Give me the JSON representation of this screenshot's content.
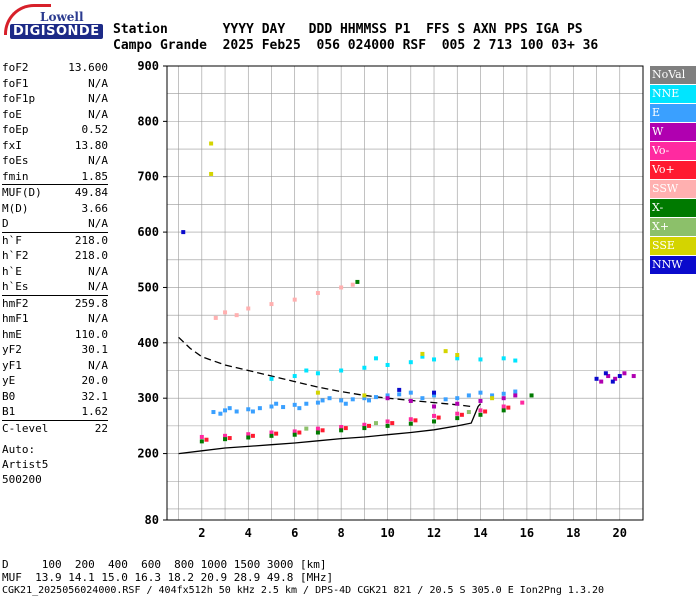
{
  "logo": {
    "top": "Lowell",
    "main": "DIGISONDE"
  },
  "header": {
    "row1": "Station       YYYY DAY   DDD HHMMSS P1  FFS S AXN PPS IGA PS",
    "row2": "Campo Grande  2025 Feb25  056 024000 RSF  005 2 713 100 03+ 36"
  },
  "params": [
    {
      "name": "foF2",
      "value": "13.600"
    },
    {
      "name": "foF1",
      "value": "N/A"
    },
    {
      "name": "foF1p",
      "value": "N/A"
    },
    {
      "name": "foE",
      "value": "N/A"
    },
    {
      "name": "foEp",
      "value": "0.52"
    },
    {
      "name": "fxI",
      "value": "13.80"
    },
    {
      "name": "foEs",
      "value": "N/A"
    },
    {
      "name": "fmin",
      "value": "1.85",
      "sep": false
    },
    {
      "name": "MUF(D)",
      "value": "49.84",
      "sep": true
    },
    {
      "name": "M(D)",
      "value": "3.66"
    },
    {
      "name": "D",
      "value": "N/A"
    },
    {
      "name": "h`F",
      "value": "218.0",
      "sep": true
    },
    {
      "name": "h`F2",
      "value": "218.0"
    },
    {
      "name": "h`E",
      "value": "N/A"
    },
    {
      "name": "h`Es",
      "value": "N/A"
    },
    {
      "name": "hmF2",
      "value": "259.8",
      "sep": true
    },
    {
      "name": "hmF1",
      "value": "N/A"
    },
    {
      "name": "hmE",
      "value": "110.0"
    },
    {
      "name": "yF2",
      "value": "30.1"
    },
    {
      "name": "yF1",
      "value": "N/A"
    },
    {
      "name": "yE",
      "value": "20.0"
    },
    {
      "name": "B0",
      "value": "32.1"
    },
    {
      "name": "B1",
      "value": "1.62"
    },
    {
      "name": "C-level",
      "value": "22",
      "sep": true
    }
  ],
  "auto": [
    "Auto:",
    "Artist5",
    "500200"
  ],
  "footer": {
    "d_row": "D     100  200  400  600  800 1000 1500 3000 [km]",
    "muf_row": "MUF  13.9 14.1 15.0 16.3 18.2 20.9 28.9 49.8 [MHz]",
    "file_row": "CGK21_2025056024000.RSF / 404fx512h 50 kHz 2.5 km / DPS-4D CGK21 821 / 20.5 S 305.0 E Ion2Png 1.3.20"
  },
  "legend": [
    {
      "label": "NoVal",
      "color": "#7f7f7f"
    },
    {
      "label": "NNE",
      "color": "#00e5ff"
    },
    {
      "label": "E",
      "color": "#3aa0ff"
    },
    {
      "label": "W",
      "color": "#b000b0"
    },
    {
      "label": "Vo-",
      "color": "#ff2aa0"
    },
    {
      "label": "Vo+",
      "color": "#ff1a30"
    },
    {
      "label": "SSW",
      "color": "#ffb0b0"
    },
    {
      "label": "X-",
      "color": "#007a00"
    },
    {
      "label": "X+",
      "color": "#8cc06a"
    },
    {
      "label": "SSE",
      "color": "#d4d400"
    },
    {
      "label": "NNW",
      "color": "#0a0acc"
    }
  ],
  "chart_data": {
    "type": "scatter",
    "title": "",
    "xlabel": "",
    "ylabel": "",
    "xlim": [
      0.5,
      21
    ],
    "ylim": [
      80,
      900
    ],
    "y_ticks": [
      80,
      200,
      300,
      400,
      500,
      600,
      700,
      800,
      900
    ],
    "x_ticks": [
      2,
      4,
      6,
      8,
      10,
      12,
      14,
      16,
      18,
      20
    ],
    "grid": true,
    "legend_position": "right",
    "series": [
      {
        "name": "E",
        "color": "#3aa0ff",
        "points": [
          [
            2.5,
            275
          ],
          [
            3,
            278
          ],
          [
            3.5,
            276
          ],
          [
            4,
            280
          ],
          [
            4.5,
            282
          ],
          [
            5,
            285
          ],
          [
            5.5,
            284
          ],
          [
            6,
            288
          ],
          [
            6.5,
            290
          ],
          [
            7,
            292
          ],
          [
            7.5,
            300
          ],
          [
            8,
            296
          ],
          [
            8.5,
            298
          ],
          [
            9,
            300
          ],
          [
            9.5,
            302
          ],
          [
            10,
            305
          ],
          [
            10.5,
            307
          ],
          [
            11,
            310
          ],
          [
            11.5,
            300
          ],
          [
            12,
            305
          ],
          [
            12.5,
            298
          ],
          [
            13,
            300
          ],
          [
            13.5,
            305
          ],
          [
            14,
            310
          ],
          [
            14.5,
            305
          ],
          [
            15,
            308
          ],
          [
            15.5,
            312
          ],
          [
            2.8,
            272
          ],
          [
            3.2,
            282
          ],
          [
            4.2,
            276
          ],
          [
            5.2,
            290
          ],
          [
            6.2,
            282
          ],
          [
            7.2,
            296
          ],
          [
            8.2,
            290
          ],
          [
            9.2,
            296
          ]
        ]
      },
      {
        "name": "NNE",
        "color": "#00e5ff",
        "points": [
          [
            5,
            335
          ],
          [
            6,
            340
          ],
          [
            7,
            345
          ],
          [
            8,
            350
          ],
          [
            9,
            355
          ],
          [
            10,
            360
          ],
          [
            11,
            365
          ],
          [
            12,
            370
          ],
          [
            13,
            372
          ],
          [
            14,
            370
          ],
          [
            15,
            372
          ],
          [
            15.5,
            368
          ],
          [
            6.5,
            350
          ],
          [
            9.5,
            372
          ],
          [
            11.5,
            375
          ]
        ]
      },
      {
        "name": "W",
        "color": "#b000b0",
        "points": [
          [
            10,
            300
          ],
          [
            11,
            295
          ],
          [
            12,
            285
          ],
          [
            13,
            290
          ],
          [
            14,
            295
          ],
          [
            15,
            300
          ],
          [
            15.5,
            305
          ],
          [
            19.2,
            330
          ],
          [
            19.5,
            340
          ],
          [
            19.8,
            335
          ],
          [
            20.2,
            345
          ],
          [
            20.6,
            340
          ]
        ]
      },
      {
        "name": "Vo-",
        "color": "#ff2aa0",
        "points": [
          [
            2,
            230
          ],
          [
            3,
            232
          ],
          [
            4,
            235
          ],
          [
            5,
            238
          ],
          [
            6,
            240
          ],
          [
            7,
            245
          ],
          [
            8,
            248
          ],
          [
            9,
            252
          ],
          [
            10,
            258
          ],
          [
            11,
            262
          ],
          [
            12,
            268
          ],
          [
            13,
            272
          ],
          [
            14,
            278
          ],
          [
            15,
            285
          ],
          [
            15.8,
            292
          ]
        ]
      },
      {
        "name": "Vo+",
        "color": "#ff1a30",
        "points": [
          [
            2.2,
            225
          ],
          [
            3.2,
            228
          ],
          [
            4.2,
            232
          ],
          [
            5.2,
            236
          ],
          [
            6.2,
            238
          ],
          [
            7.2,
            242
          ],
          [
            8.2,
            246
          ],
          [
            9.2,
            250
          ],
          [
            10.2,
            255
          ],
          [
            11.2,
            260
          ],
          [
            12.2,
            265
          ],
          [
            13.2,
            270
          ],
          [
            14.2,
            276
          ],
          [
            15.2,
            283
          ]
        ]
      },
      {
        "name": "X-",
        "color": "#007a00",
        "points": [
          [
            2,
            222
          ],
          [
            3,
            226
          ],
          [
            4,
            229
          ],
          [
            5,
            232
          ],
          [
            6,
            234
          ],
          [
            7,
            238
          ],
          [
            8,
            242
          ],
          [
            9,
            246
          ],
          [
            10,
            250
          ],
          [
            11,
            254
          ],
          [
            12,
            258
          ],
          [
            13,
            264
          ],
          [
            14,
            270
          ],
          [
            15,
            278
          ],
          [
            8.7,
            510
          ],
          [
            16.2,
            305
          ]
        ]
      },
      {
        "name": "SSE",
        "color": "#d4d400",
        "points": [
          [
            2.4,
            760
          ],
          [
            2.4,
            705
          ],
          [
            11.5,
            380
          ],
          [
            12.5,
            385
          ],
          [
            13,
            378
          ],
          [
            9,
            305
          ],
          [
            7,
            310
          ],
          [
            14.5,
            300
          ]
        ]
      },
      {
        "name": "NNW",
        "color": "#0a0acc",
        "points": [
          [
            19,
            335
          ],
          [
            19.4,
            345
          ],
          [
            19.7,
            330
          ],
          [
            20,
            340
          ],
          [
            10.5,
            315
          ],
          [
            12,
            310
          ],
          [
            1.2,
            600
          ]
        ]
      },
      {
        "name": "SSW",
        "color": "#ffb0b0",
        "points": [
          [
            3,
            455
          ],
          [
            4,
            462
          ],
          [
            5,
            470
          ],
          [
            6,
            478
          ],
          [
            7,
            490
          ],
          [
            8,
            500
          ],
          [
            8.5,
            505
          ],
          [
            2.6,
            445
          ],
          [
            3.5,
            450
          ]
        ]
      },
      {
        "name": "X+",
        "color": "#8cc06a",
        "points": [
          [
            6.5,
            245
          ],
          [
            9.5,
            255
          ],
          [
            13.5,
            275
          ]
        ]
      }
    ],
    "curves": {
      "dashed_profile": [
        [
          1,
          410
        ],
        [
          1.5,
          390
        ],
        [
          2,
          375
        ],
        [
          3,
          360
        ],
        [
          4,
          350
        ],
        [
          5,
          340
        ],
        [
          6,
          330
        ],
        [
          7,
          320
        ],
        [
          8,
          312
        ],
        [
          9,
          305
        ],
        [
          10,
          300
        ],
        [
          11,
          296
        ],
        [
          12,
          292
        ],
        [
          13,
          288
        ],
        [
          13.6,
          285
        ]
      ],
      "solid_trace": [
        [
          1,
          200
        ],
        [
          2,
          205
        ],
        [
          3,
          210
        ],
        [
          4,
          213
        ],
        [
          5,
          216
        ],
        [
          6,
          219
        ],
        [
          7,
          223
        ],
        [
          8,
          227
        ],
        [
          9,
          230
        ],
        [
          10,
          234
        ],
        [
          11,
          238
        ],
        [
          12,
          243
        ],
        [
          13,
          250
        ],
        [
          13.6,
          255
        ],
        [
          13.7,
          265
        ],
        [
          13.9,
          285
        ],
        [
          14,
          290
        ]
      ]
    }
  }
}
